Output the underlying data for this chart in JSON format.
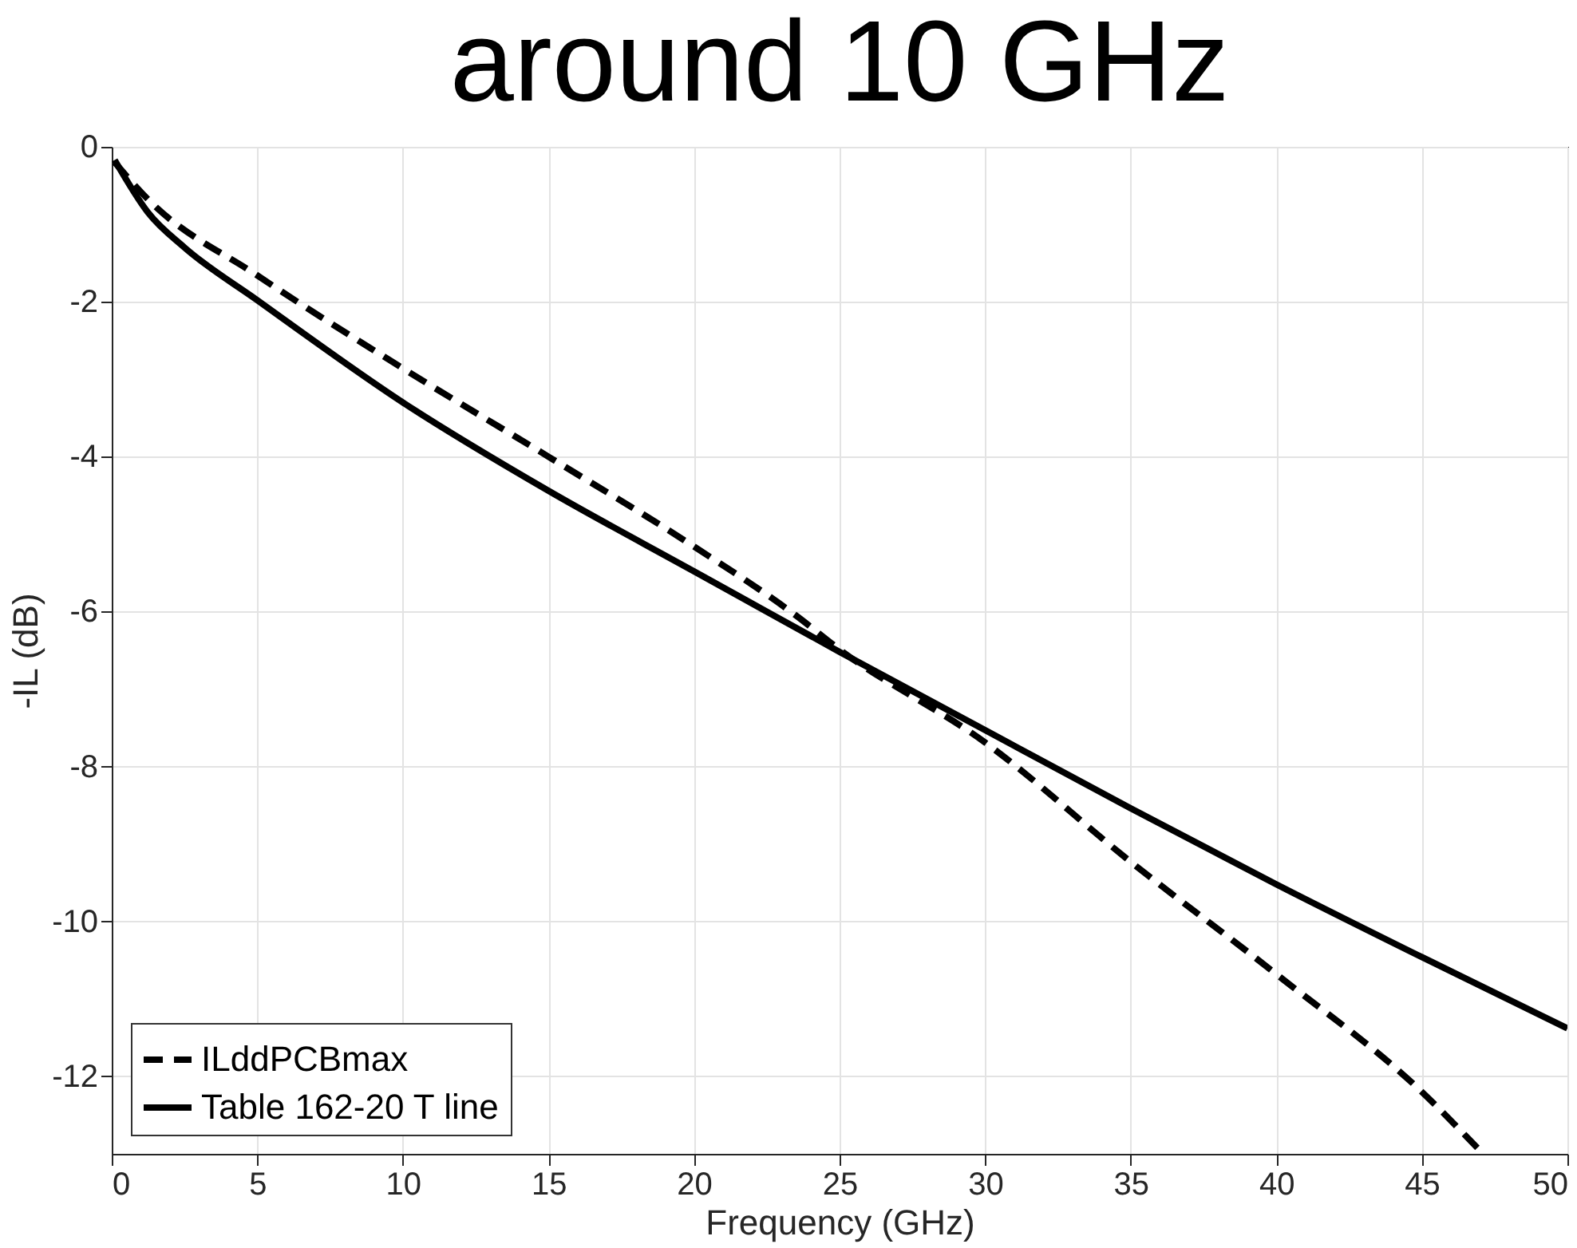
{
  "chart_data": {
    "type": "line",
    "title": "around 10 GHz",
    "xlabel": "Frequency (GHz)",
    "ylabel": "-IL (dB)",
    "xlim": [
      0,
      50
    ],
    "xticks": [
      0,
      5,
      10,
      15,
      20,
      25,
      30,
      35,
      40,
      45,
      50
    ],
    "ylim": [
      -13,
      0
    ],
    "yticks": [
      -12,
      -10,
      -8,
      -6,
      -4,
      -2,
      0
    ],
    "grid": true,
    "legend": "bottom left",
    "series": [
      {
        "name": "ILddPCBmax",
        "color": "#000000",
        "line_style": "dashed",
        "x": [
          0.1,
          1.25,
          5,
          10,
          15,
          20,
          23.5,
          25,
          30,
          35,
          40,
          45,
          47
        ],
        "values": [
          -0.2,
          -0.68,
          -1.66,
          -2.86,
          -4.0,
          -5.16,
          -6.05,
          -6.49,
          -7.69,
          -9.23,
          -10.68,
          -12.2,
          -12.96
        ]
      },
      {
        "name": "Table 162-20 T line",
        "color": "#000000",
        "line_style": "solid",
        "x": [
          0.1,
          1.25,
          2.5,
          5,
          10,
          15,
          20,
          25,
          30,
          35,
          40,
          45,
          50
        ],
        "values": [
          -0.17,
          -0.85,
          -1.3,
          -1.98,
          -3.3,
          -4.44,
          -5.48,
          -6.52,
          -7.53,
          -8.54,
          -9.52,
          -10.46,
          -11.38
        ]
      }
    ]
  }
}
